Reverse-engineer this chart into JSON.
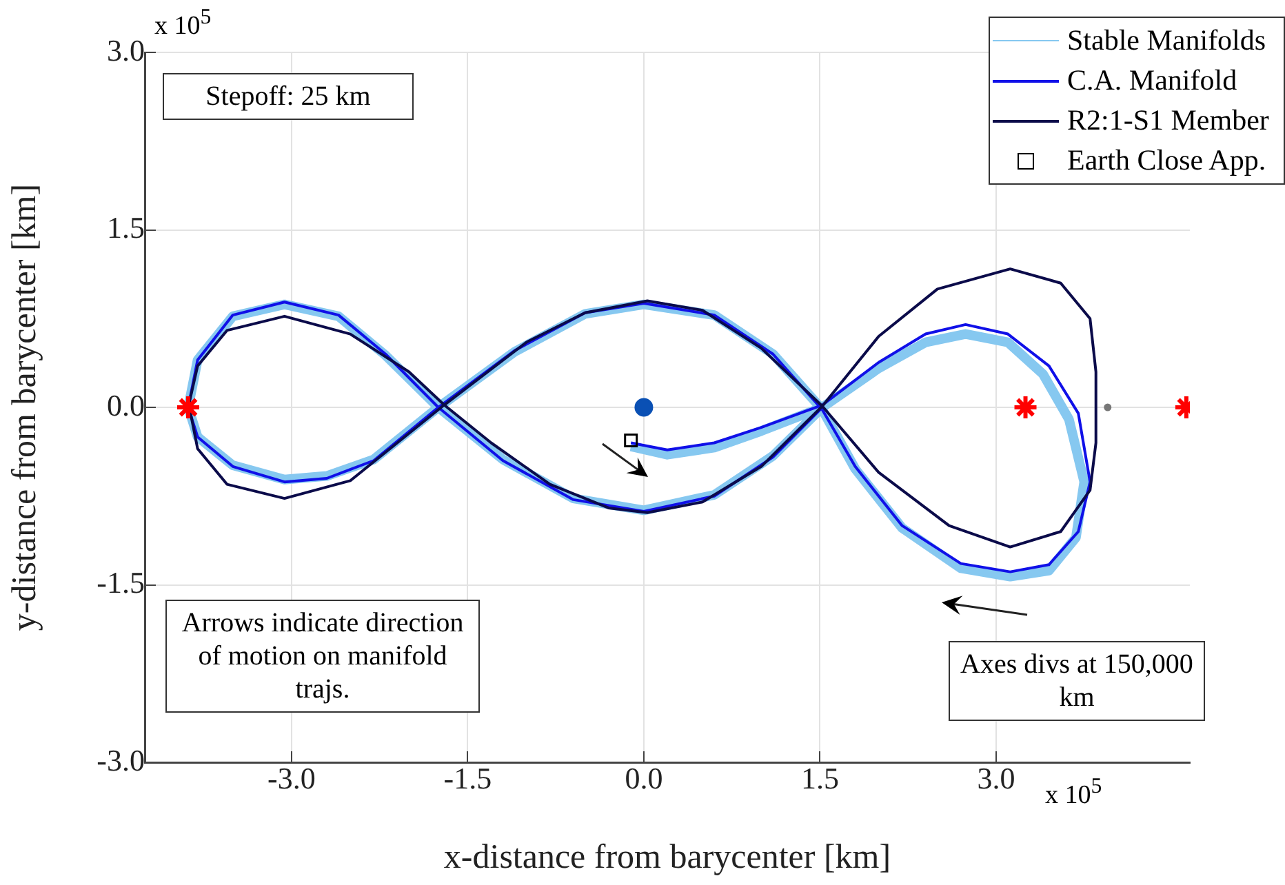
{
  "chart_data": {
    "type": "line",
    "xlabel": "x-distance from barycenter [km]",
    "ylabel": "y-distance from barycenter [km]",
    "xlim": [
      -4.25,
      4.65
    ],
    "ylim": [
      -3,
      3
    ],
    "xticks": [
      {
        "value": -3,
        "label": "-3.0"
      },
      {
        "value": -1.5,
        "label": "-1.5"
      },
      {
        "value": 0,
        "label": "0.0"
      },
      {
        "value": 1.5,
        "label": "1.5"
      },
      {
        "value": 3,
        "label": "3.0"
      }
    ],
    "yticks": [
      {
        "value": -3,
        "label": "-3.0"
      },
      {
        "value": -1.5,
        "label": "-1.5"
      },
      {
        "value": 0,
        "label": "0.0"
      },
      {
        "value": 1.5,
        "label": "1.5"
      },
      {
        "value": 3,
        "label": "3.0"
      }
    ],
    "grid": true,
    "legend": "top right",
    "line_style": "solid",
    "annotations": [
      "Stepoff: 25 km",
      "Arrows indicate direction of motion on manifold trajs.",
      "Axes divs at 150,000 km",
      "x 10$^{5}$",
      "x 10$^{5}$"
    ],
    "series": [
      {
        "name": "Stable Manifolds",
        "marker": "none",
        "color": "#86c8f0",
        "x": [
          -0.11,
          0.2,
          0.6,
          1.0,
          1.52,
          2.0,
          2.4,
          2.74,
          3.1,
          3.4,
          3.62,
          3.75,
          3.68,
          3.45,
          3.12,
          2.7,
          2.2,
          1.8,
          1.52,
          1.1,
          0.6,
          0.0,
          -0.5,
          -1.1,
          -1.75,
          -2.3,
          -2.7,
          -3.06,
          -3.5,
          -3.8,
          -3.88,
          -3.8,
          -3.5,
          -3.06,
          -2.6,
          -2.2,
          -1.75,
          -1.2,
          -0.6,
          0.0,
          0.6,
          1.1,
          1.52
        ],
        "values": [
          -0.33,
          -0.4,
          -0.34,
          -0.2,
          0.0,
          0.33,
          0.55,
          0.62,
          0.55,
          0.28,
          -0.1,
          -0.63,
          -1.1,
          -1.38,
          -1.43,
          -1.36,
          -1.02,
          -0.52,
          -0.02,
          0.45,
          0.78,
          0.87,
          0.79,
          0.47,
          0.0,
          -0.44,
          -0.58,
          -0.61,
          -0.49,
          -0.25,
          0.0,
          0.4,
          0.77,
          0.87,
          0.77,
          0.44,
          0.0,
          -0.44,
          -0.77,
          -0.87,
          -0.74,
          -0.41,
          0.0
        ]
      },
      {
        "name": "C.A. Manifold",
        "marker": "none",
        "color": "#1010e8",
        "x": [
          -0.11,
          0.2,
          0.6,
          1.0,
          1.52,
          2.0,
          2.4,
          2.74,
          3.1,
          3.45,
          3.7,
          3.8,
          3.7,
          3.45,
          3.12,
          2.7,
          2.2,
          1.8,
          1.52,
          1.1,
          0.6,
          0.0,
          -0.5,
          -1.1,
          -1.75,
          -2.3,
          -2.7,
          -3.06,
          -3.5,
          -3.8,
          -3.88,
          -3.8,
          -3.5,
          -3.06,
          -2.6,
          -2.2,
          -1.75,
          -1.2,
          -0.6,
          0.0,
          0.6,
          1.1,
          1.52
        ],
        "values": [
          -0.3,
          -0.36,
          -0.3,
          -0.17,
          0.02,
          0.38,
          0.62,
          0.7,
          0.62,
          0.35,
          -0.05,
          -0.63,
          -1.05,
          -1.33,
          -1.39,
          -1.32,
          -1.0,
          -0.5,
          -0.02,
          0.45,
          0.78,
          0.88,
          0.8,
          0.48,
          0.0,
          -0.45,
          -0.6,
          -0.63,
          -0.5,
          -0.25,
          0.0,
          0.4,
          0.78,
          0.89,
          0.78,
          0.45,
          0.0,
          -0.45,
          -0.78,
          -0.88,
          -0.75,
          -0.42,
          0.0
        ]
      },
      {
        "name": "R2:1-S1 Member",
        "marker": "none",
        "color": "#0b0b4a",
        "x": [
          -3.88,
          -3.8,
          -3.55,
          -3.06,
          -2.5,
          -2.0,
          -1.7,
          -1.3,
          -0.8,
          -0.3,
          0.03,
          0.5,
          1.0,
          1.52,
          2.0,
          2.5,
          3.12,
          3.55,
          3.8,
          3.85,
          3.85,
          3.8,
          3.55,
          3.12,
          2.6,
          2.0,
          1.52,
          1.0,
          0.5,
          0.03,
          -0.5,
          -1.0,
          -1.7,
          -2.5,
          -3.06,
          -3.55,
          -3.8,
          -3.87
        ],
        "values": [
          0.0,
          0.35,
          0.65,
          0.77,
          0.62,
          0.3,
          0.02,
          -0.3,
          -0.65,
          -0.85,
          -0.89,
          -0.8,
          -0.5,
          0.01,
          0.6,
          1.0,
          1.17,
          1.05,
          0.75,
          0.3,
          -0.3,
          -0.7,
          -1.05,
          -1.18,
          -1.0,
          -0.55,
          0.01,
          0.5,
          0.82,
          0.9,
          0.8,
          0.55,
          0.02,
          -0.62,
          -0.77,
          -0.65,
          -0.35,
          0.0
        ]
      },
      {
        "name": "Earth Close App.",
        "type": "scatter",
        "marker": "square",
        "color": "#000000",
        "x": [
          -0.11
        ],
        "values": [
          -0.28
        ]
      },
      {
        "type": "scatter",
        "marker": "circle",
        "color": "#0a50b4",
        "x": [
          0.0
        ],
        "values": [
          0.0
        ]
      },
      {
        "type": "scatter",
        "color": "#ff0000",
        "x": [
          -3.88,
          3.25,
          4.62
        ],
        "values": [
          0.0,
          0.0,
          0.0
        ]
      },
      {
        "type": "scatter",
        "marker": "circle",
        "color": "#777777",
        "x": [
          3.95
        ],
        "values": [
          0.0
        ]
      }
    ]
  }
}
